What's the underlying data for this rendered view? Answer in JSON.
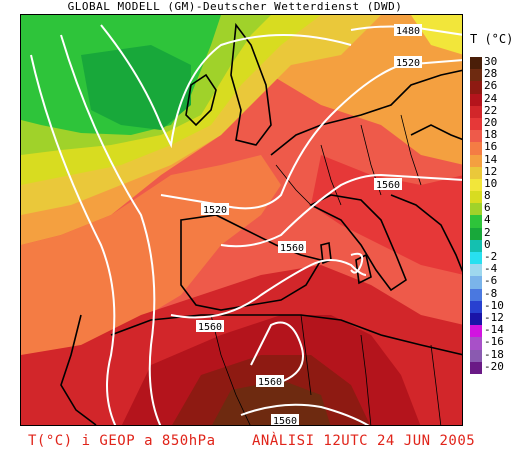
{
  "header": {
    "title": "GLOBAL MODELL (GM)-Deutscher Wetterdienst (DWD)"
  },
  "legend": {
    "title": "T (°C)",
    "entries": [
      {
        "label": "30",
        "color": "#4a1e08"
      },
      {
        "label": "28",
        "color": "#6e2a10"
      },
      {
        "label": "26",
        "color": "#8e1a12"
      },
      {
        "label": "24",
        "color": "#b4141c"
      },
      {
        "label": "22",
        "color": "#d2262a"
      },
      {
        "label": "20",
        "color": "#e63838"
      },
      {
        "label": "18",
        "color": "#ee5a4a"
      },
      {
        "label": "16",
        "color": "#f47c44"
      },
      {
        "label": "14",
        "color": "#f4a040"
      },
      {
        "label": "12",
        "color": "#eac83a"
      },
      {
        "label": "10",
        "color": "#f2e63a"
      },
      {
        "label": "8",
        "color": "#d8dc20"
      },
      {
        "label": "6",
        "color": "#a0d22a"
      },
      {
        "label": "4",
        "color": "#2ec43a"
      },
      {
        "label": "2",
        "color": "#18a83a"
      },
      {
        "label": "0",
        "color": "#14c0b0"
      },
      {
        "label": "-2",
        "color": "#28e0f0"
      },
      {
        "label": "-4",
        "color": "#9ed8ee"
      },
      {
        "label": "-6",
        "color": "#7ab4ea"
      },
      {
        "label": "-8",
        "color": "#4a78e0"
      },
      {
        "label": "-10",
        "color": "#2840d0"
      },
      {
        "label": "-12",
        "color": "#1a14a8"
      },
      {
        "label": "-14",
        "color": "#d214e0"
      },
      {
        "label": "-16",
        "color": "#a850c8"
      },
      {
        "label": "-18",
        "color": "#8a5ab0"
      },
      {
        "label": "-20",
        "color": "#6a1a86"
      }
    ]
  },
  "isolines": {
    "labels": [
      "1480",
      "1520",
      "1520",
      "1560",
      "1560",
      "1560",
      "1560",
      "1560"
    ]
  },
  "footer": {
    "caption": "T(°C) i GEOP a 850hPa",
    "date": "ANÀLISI 12UTC 24 JUN 2005"
  },
  "colors": {
    "caption": "#e0241a",
    "isoline": "#ffffff",
    "coast": "#000000"
  }
}
